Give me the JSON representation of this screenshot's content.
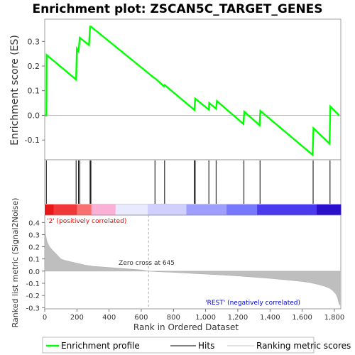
{
  "chart_data": {
    "type": "line",
    "title": "Enrichment plot: ZSCAN5C_TARGET_GENES",
    "xlabel": "Rank in Ordered Dataset",
    "ylabel_top": "Enrichment score (ES)",
    "ylabel_bottom": "Ranked list metric (Signal2Noise)",
    "xlim": [
      0,
      1840
    ],
    "x_ticks": [
      0,
      200,
      400,
      600,
      800,
      1000,
      1200,
      1400,
      1600,
      1800
    ],
    "x_tick_labels": [
      "0",
      "200",
      "400",
      "600",
      "800",
      "1,000",
      "1,200",
      "1,400",
      "1,600",
      "1,800"
    ],
    "es_ylim": [
      -0.18,
      0.39
    ],
    "es_ticks": [
      0.3,
      0.2,
      0.1,
      0.0,
      -0.1
    ],
    "es_tick_labels": [
      "0.3",
      "0.2",
      "0.1",
      "0.0",
      "-0.1"
    ],
    "metric_ylim": [
      -0.31,
      0.46
    ],
    "metric_ticks": [
      0.4,
      0.3,
      0.2,
      0.1,
      0.0,
      -0.1,
      -0.2,
      -0.3
    ],
    "metric_tick_labels": [
      "0.4",
      "0.3",
      "0.2",
      "0.1",
      "0.0",
      "-0.1",
      "-0.2",
      "-0.3"
    ],
    "enrichment_profile": {
      "x": [
        0,
        10,
        12,
        195,
        200,
        210,
        218,
        275,
        282,
        287,
        680,
        690,
        740,
        745,
        930,
        935,
        1020,
        1022,
        1065,
        1070,
        1235,
        1240,
        1335,
        1340,
        1665,
        1670,
        1770,
        1775,
        1830
      ],
      "y": [
        0.0,
        0.0,
        0.245,
        0.145,
        0.27,
        0.26,
        0.315,
        0.285,
        0.36,
        0.36,
        0.152,
        0.148,
        0.118,
        0.123,
        0.022,
        0.068,
        0.023,
        0.05,
        0.027,
        0.058,
        -0.035,
        0.015,
        -0.04,
        0.018,
        -0.16,
        -0.052,
        -0.115,
        0.036,
        0.0
      ]
    },
    "hits": [
      10,
      195,
      210,
      218,
      282,
      287,
      685,
      745,
      930,
      935,
      1020,
      1065,
      1238,
      1338,
      1668,
      1773
    ],
    "ranked_metric": {
      "x": [
        0,
        5,
        15,
        30,
        50,
        80,
        100,
        120,
        150,
        200,
        250,
        300,
        400,
        500,
        600,
        645,
        700,
        800,
        900,
        1000,
        1100,
        1200,
        1300,
        1400,
        1500,
        1600,
        1650,
        1700,
        1740,
        1770,
        1790,
        1810,
        1820,
        1830,
        1835
      ],
      "y": [
        0.44,
        0.3,
        0.24,
        0.2,
        0.17,
        0.13,
        0.1,
        0.09,
        0.08,
        0.065,
        0.05,
        0.04,
        0.03,
        0.02,
        0.01,
        0.0,
        -0.005,
        -0.01,
        -0.018,
        -0.025,
        -0.032,
        -0.04,
        -0.05,
        -0.06,
        -0.072,
        -0.085,
        -0.095,
        -0.11,
        -0.125,
        -0.14,
        -0.16,
        -0.19,
        -0.22,
        -0.27,
        -0.28
      ]
    },
    "zero_cross_label": "Zero cross at 645",
    "zero_cross": 645,
    "positive_label": "'2' (positively correlated)",
    "negative_label": "'REST' (negatively correlated)",
    "legend": [
      {
        "label": "Enrichment profile",
        "color": "#00ff00"
      },
      {
        "label": "Hits",
        "color": "#000000"
      },
      {
        "label": "Ranking metric scores",
        "color": "#c8c8c8"
      }
    ],
    "colors": {
      "profile": "#00ff00",
      "metric_fill": "#bebebe",
      "positive_text": "#ff0000",
      "negative_text": "#0000cc",
      "heat_segments": [
        "#e81818",
        "#f03838",
        "#f87070",
        "#fbb0d8",
        "#eaeaff",
        "#d0d0ff",
        "#9e9eff",
        "#7878ff",
        "#4a3aee",
        "#2a10cc"
      ]
    }
  }
}
